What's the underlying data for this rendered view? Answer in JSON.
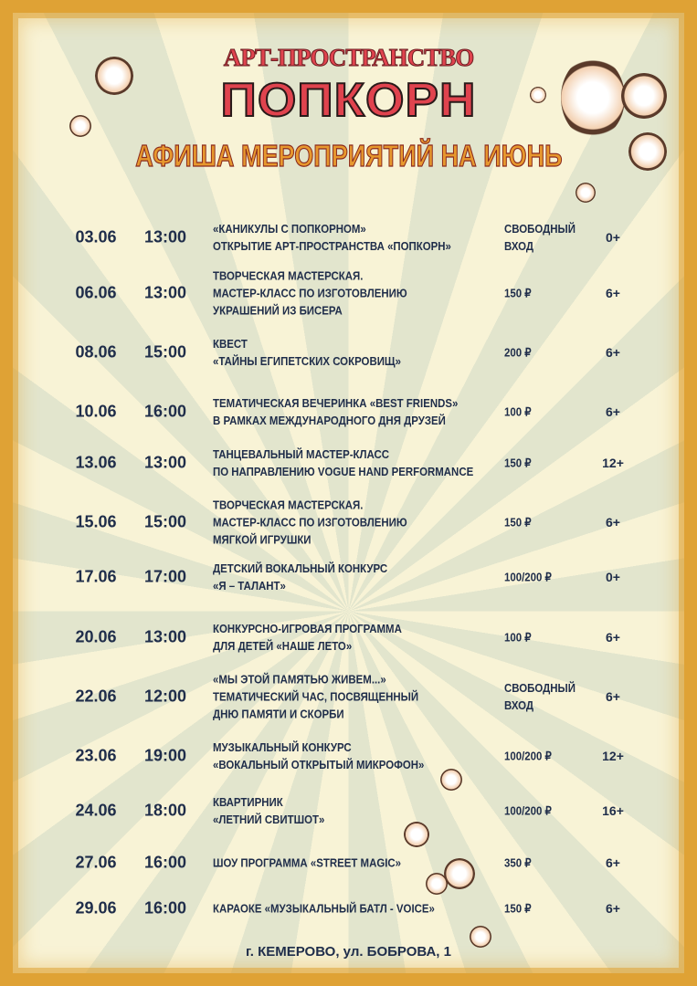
{
  "header": {
    "subtitle": "АРТ-ПРОСТРАНСТВО",
    "title": "ПОПКОРН",
    "heading": "АФИША МЕРОПРИЯТИЙ НА ИЮНЬ"
  },
  "events": [
    {
      "date": "03.06",
      "time": "13:00",
      "lines": [
        "«КАНИКУЛЫ С ПОПКОРНОМ»",
        "ОТКРЫТИЕ АРТ-ПРОСТРАНСТВА «ПОПКОРН»"
      ],
      "price": [
        "СВОБОДНЫЙ",
        "ВХОД"
      ],
      "age": "0+"
    },
    {
      "date": "06.06",
      "time": "13:00",
      "lines": [
        "ТВОРЧЕСКАЯ МАСТЕРСКАЯ.",
        "МАСТЕР-КЛАСС ПО ИЗГОТОВЛЕНИЮ",
        "УКРАШЕНИЙ ИЗ БИСЕРА"
      ],
      "price": [
        "150 ₽"
      ],
      "age": "6+"
    },
    {
      "date": "08.06",
      "time": "15:00",
      "lines": [
        "КВЕСТ",
        "«ТАЙНЫ ЕГИПЕТСКИХ СОКРОВИЩ»"
      ],
      "price": [
        "200 ₽"
      ],
      "age": "6+"
    },
    {
      "date": "10.06",
      "time": "16:00",
      "lines": [
        "ТЕМАТИЧЕСКАЯ ВЕЧЕРИНКА «BEST FRIENDS»",
        "В РАМКАХ МЕЖДУНАРОДНОГО ДНЯ ДРУЗЕЙ"
      ],
      "price": [
        "100 ₽"
      ],
      "age": "6+"
    },
    {
      "date": "13.06",
      "time": "13:00",
      "lines": [
        "ТАНЦЕВАЛЬНЫЙ МАСТЕР-КЛАСС",
        "ПО НАПРАВЛЕНИЮ VOGUE HAND PERFORMANCE"
      ],
      "price": [
        "150 ₽"
      ],
      "age": "12+"
    },
    {
      "date": "15.06",
      "time": "15:00",
      "lines": [
        "ТВОРЧЕСКАЯ МАСТЕРСКАЯ.",
        "МАСТЕР-КЛАСС ПО ИЗГОТОВЛЕНИЮ",
        "МЯГКОЙ ИГРУШКИ"
      ],
      "price": [
        "150 ₽"
      ],
      "age": "6+"
    },
    {
      "date": "17.06",
      "time": "17:00",
      "lines": [
        "ДЕТСКИЙ ВОКАЛЬНЫЙ КОНКУРС",
        "«Я – ТАЛАНТ»"
      ],
      "price": [
        "100/200 ₽"
      ],
      "age": "0+"
    },
    {
      "date": "20.06",
      "time": "13:00",
      "lines": [
        "КОНКУРСНО-ИГРОВАЯ ПРОГРАММА",
        "ДЛЯ ДЕТЕЙ «НАШЕ ЛЕТО»"
      ],
      "price": [
        "100 ₽"
      ],
      "age": "6+"
    },
    {
      "date": "22.06",
      "time": "12:00",
      "lines": [
        "«МЫ ЭТОЙ ПАМЯТЬЮ ЖИВЕМ...»",
        "ТЕМАТИЧЕСКИЙ ЧАС, ПОСВЯЩЕННЫЙ",
        "ДНЮ ПАМЯТИ И СКОРБИ"
      ],
      "price": [
        "СВОБОДНЫЙ",
        "ВХОД"
      ],
      "age": "6+"
    },
    {
      "date": "23.06",
      "time": "19:00",
      "lines": [
        "МУЗЫКАЛЬНЫЙ КОНКУРС",
        "«ВОКАЛЬНЫЙ ОТКРЫТЫЙ МИКРОФОН»"
      ],
      "price": [
        "100/200 ₽"
      ],
      "age": "12+"
    },
    {
      "date": "24.06",
      "time": "18:00",
      "lines": [
        "КВАРТИРНИК",
        "«ЛЕТНИЙ СВИТШОТ»"
      ],
      "price": [
        "100/200 ₽"
      ],
      "age": "16+"
    },
    {
      "date": "27.06",
      "time": "16:00",
      "lines": [
        "ШОУ ПРОГРАММА «STREET MAGIC»"
      ],
      "price": [
        "350 ₽"
      ],
      "age": "6+"
    },
    {
      "date": "29.06",
      "time": "16:00",
      "lines": [
        "КАРАОКЕ «МУЗЫКАЛЬНЫЙ БАТЛ - VOICE»"
      ],
      "price": [
        "150 ₽"
      ],
      "age": "6+"
    }
  ],
  "footer": {
    "address": "г. КЕМЕРОВО, ул. БОБРОВА, 1"
  },
  "colors": {
    "background": "#f8f3d6",
    "rays": "#e2e5cd",
    "border": "#dfa235",
    "title_red": "#e0434e",
    "heading_orange": "#e7982e",
    "text": "#1f2d4a"
  }
}
